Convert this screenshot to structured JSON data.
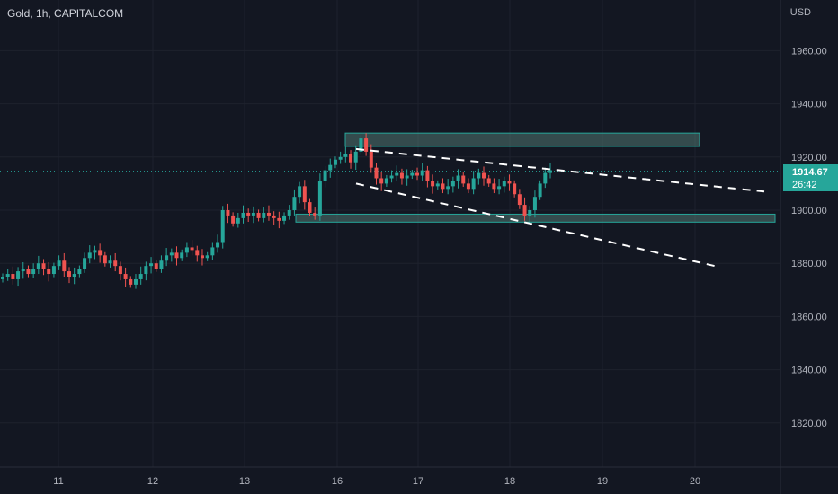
{
  "header": {
    "title": "Gold, 1h, CAPITALCOM",
    "currency": "USD"
  },
  "price_tag": {
    "price": "1914.67",
    "countdown": "26:42"
  },
  "colors": {
    "background": "#131722",
    "grid": "#1e222d",
    "up": "#26a69a",
    "down": "#ef5350",
    "zone": "#5d8b83",
    "trendline": "#ffffff"
  },
  "chart_data": {
    "type": "candlestick",
    "title": "Gold, 1h, CAPITALCOM",
    "ylabel": "USD",
    "ylim": [
      1800,
      1972
    ],
    "y_ticks": [
      "1960.00",
      "1940.00",
      "1920.00",
      "1900.00",
      "1880.00",
      "1860.00",
      "1840.00",
      "1820.00"
    ],
    "x_ticks": [
      "11",
      "12",
      "13",
      "16",
      "17",
      "18",
      "19",
      "20"
    ],
    "current_price": 1914.67,
    "grid": true,
    "candles_close_path": [
      1875,
      1876,
      1874,
      1877,
      1878,
      1876,
      1878,
      1880,
      1878,
      1876,
      1879,
      1881,
      1877,
      1875,
      1876,
      1878,
      1882,
      1884,
      1885,
      1883,
      1880,
      1881,
      1879,
      1876,
      1874,
      1872,
      1874,
      1876,
      1879,
      1880,
      1878,
      1881,
      1883,
      1884,
      1882,
      1884,
      1886,
      1885,
      1883,
      1882,
      1883,
      1886,
      1888,
      1900,
      1898,
      1895,
      1897,
      1899,
      1898,
      1899,
      1897,
      1899,
      1898,
      1897,
      1896,
      1898,
      1900,
      1905,
      1909,
      1903,
      1899,
      1898,
      1911,
      1915,
      1917,
      1919,
      1920,
      1921,
      1918,
      1922,
      1927,
      1922,
      1916,
      1912,
      1910,
      1912,
      1913,
      1914,
      1912,
      1913,
      1914,
      1913,
      1915,
      1911,
      1909,
      1910,
      1908,
      1909,
      1911,
      1913,
      1910,
      1908,
      1912,
      1914,
      1912,
      1910,
      1908,
      1909,
      1911,
      1910,
      1906,
      1902,
      1898,
      1900,
      1905,
      1910,
      1914,
      1915
    ],
    "zones": [
      {
        "name": "resistance-zone",
        "y_top": 1929,
        "y_bottom": 1924,
        "x_start": "16",
        "x_end": "20"
      },
      {
        "name": "support-zone",
        "y_top": 1898.5,
        "y_bottom": 1895.5,
        "x_start": "13",
        "x_end": "21"
      }
    ],
    "trendlines": [
      {
        "name": "upper-trendline",
        "from": {
          "x": "16",
          "y": 1923
        },
        "to": {
          "x": "20",
          "y": 1907
        }
      },
      {
        "name": "lower-trendline",
        "from": {
          "x": "16",
          "y": 1910
        },
        "to": {
          "x": "20",
          "y": 1879
        }
      }
    ]
  }
}
